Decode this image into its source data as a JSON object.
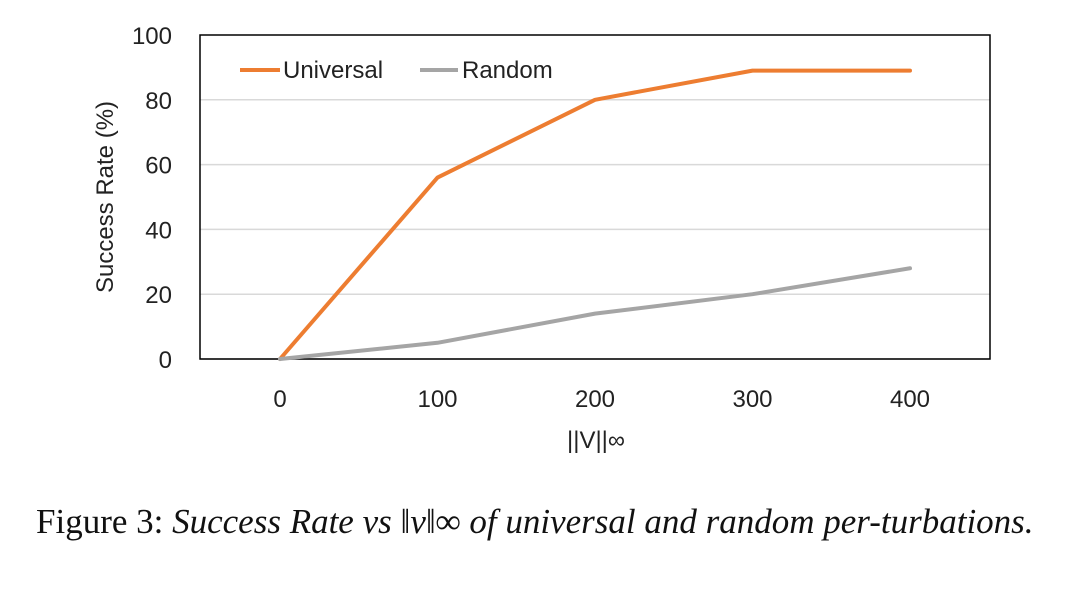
{
  "chart_data": {
    "type": "line",
    "x": [
      0,
      100,
      200,
      300,
      400
    ],
    "x_tick_labels": [
      "0",
      "100",
      "200",
      "300",
      "400"
    ],
    "y_tick_labels": [
      "0",
      "20",
      "40",
      "60",
      "80",
      "100"
    ],
    "ylim": [
      0,
      100
    ],
    "xlabel": "||V||∞",
    "ylabel": "Success Rate (%)",
    "grid": "horizontal",
    "legend_position": "top-left",
    "series": [
      {
        "name": "Universal",
        "color": "#ed7d31",
        "values": [
          0,
          56,
          80,
          89,
          89
        ]
      },
      {
        "name": "Random",
        "color": "#a5a5a5",
        "values": [
          0,
          5,
          14,
          20,
          28
        ]
      }
    ]
  },
  "caption": {
    "label": "Figure 3:",
    "text": "Success Rate vs ‖v‖∞ of universal and random per-turbations."
  }
}
